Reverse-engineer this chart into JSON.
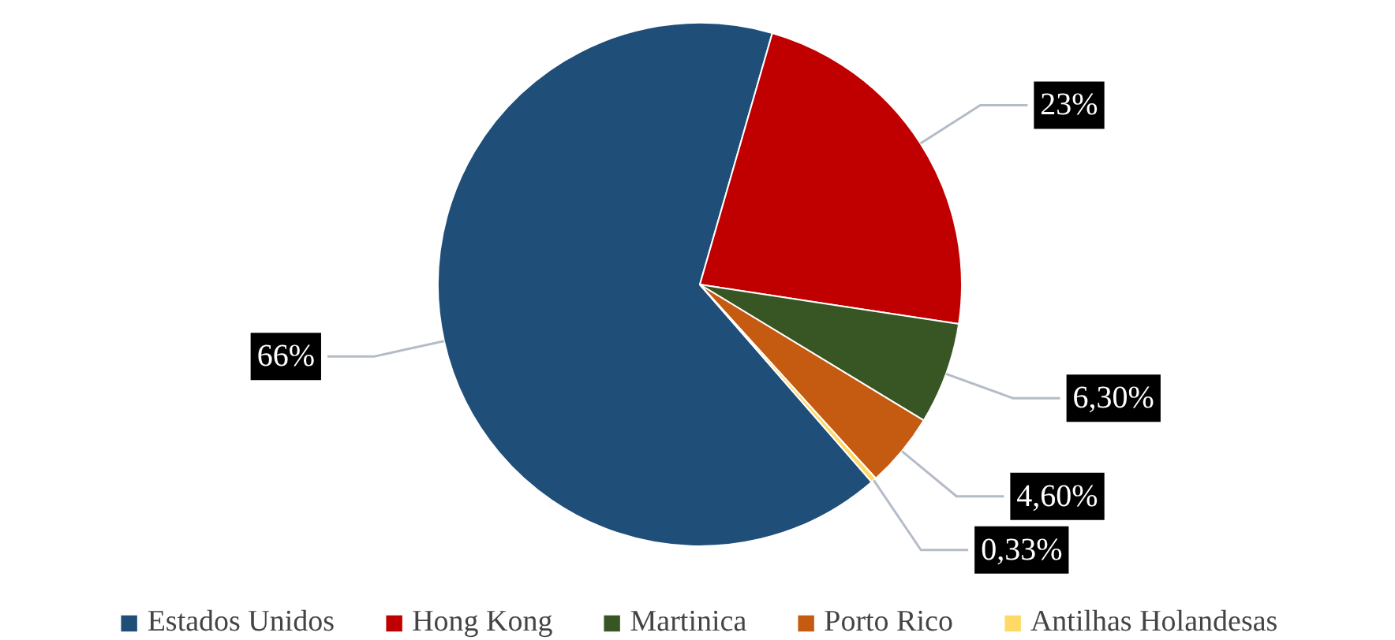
{
  "chart_data": {
    "type": "pie",
    "categories": [
      "Estados Unidos",
      "Hong Kong",
      "Martinica",
      "Porto Rico",
      "Antilhas Holandesas"
    ],
    "values": [
      66,
      23,
      6.3,
      4.6,
      0.33
    ],
    "value_labels": [
      "66%",
      "23%",
      "6,30%",
      "4,60%",
      "0,33%"
    ],
    "colors": [
      "#1f4e79",
      "#c00000",
      "#375623",
      "#c55a11",
      "#ffd966"
    ],
    "legend": "bottom"
  }
}
